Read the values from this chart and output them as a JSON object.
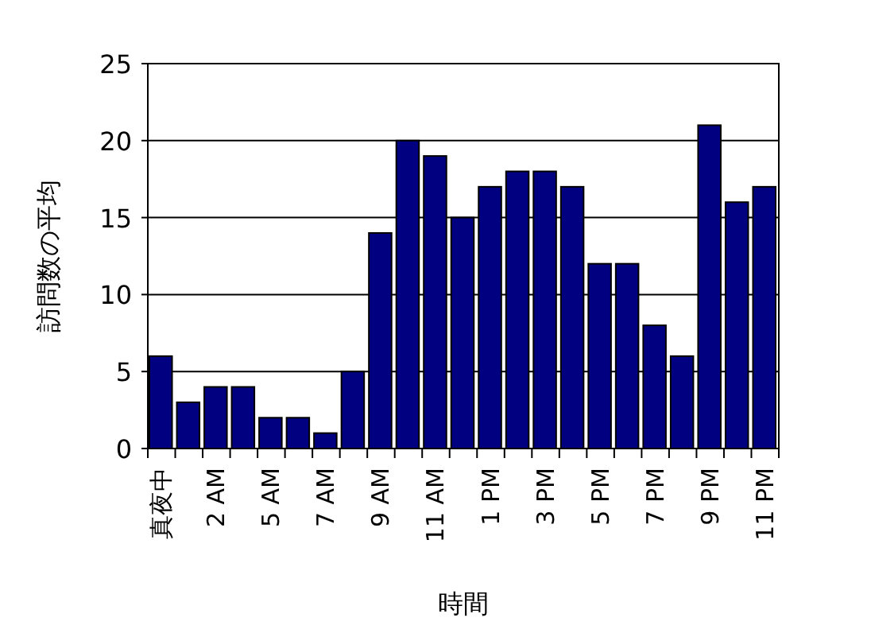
{
  "chart_data": {
    "type": "bar",
    "xlabel": "時間",
    "ylabel": "訪問数の平均",
    "categories": [
      "真夜中",
      null,
      "2 AM",
      null,
      "5 AM",
      null,
      "7 AM",
      null,
      "9 AM",
      null,
      "11 AM",
      null,
      "1 PM",
      null,
      "3 PM",
      null,
      "5 PM",
      null,
      "7 PM",
      null,
      "9 PM",
      null,
      "11 PM"
    ],
    "values": [
      6,
      3,
      4,
      4,
      2,
      2,
      1,
      5,
      14,
      20,
      19,
      15,
      17,
      18,
      18,
      17,
      12,
      12,
      8,
      6,
      21,
      16,
      17
    ],
    "color": "#000080",
    "ylim": [
      0,
      25
    ],
    "yticks": [
      0,
      5,
      10,
      15,
      20,
      25
    ],
    "grid": "y"
  }
}
